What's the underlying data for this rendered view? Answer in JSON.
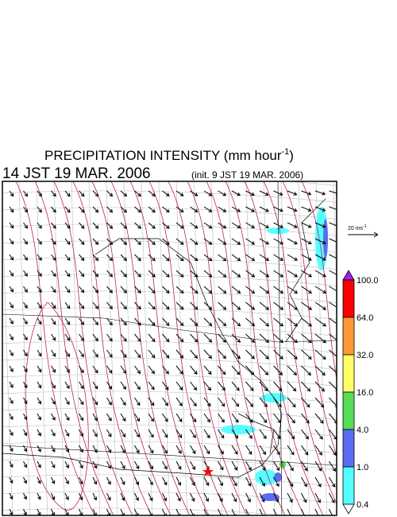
{
  "header": {
    "title": "PRECIPITATION INTENSITY (mm hour",
    "title_exponent": "-1",
    "title_close": ")",
    "valid_time": "14 JST 19 MAR. 2006",
    "init_time": "(init. 9 JST 19 MAR. 2006)"
  },
  "wind_scale": {
    "label": "20 ms",
    "exponent": "-1"
  },
  "colorbar": {
    "labels": [
      "100.0",
      "64.0",
      "32.0",
      "16.0",
      "4.0",
      "1.0",
      "0.4"
    ],
    "colors": [
      "#a020f0",
      "#ff0000",
      "#ff9933",
      "#ffff66",
      "#55dd55",
      "#5c6cf0",
      "#55ffff",
      "#ffffff"
    ]
  }
}
